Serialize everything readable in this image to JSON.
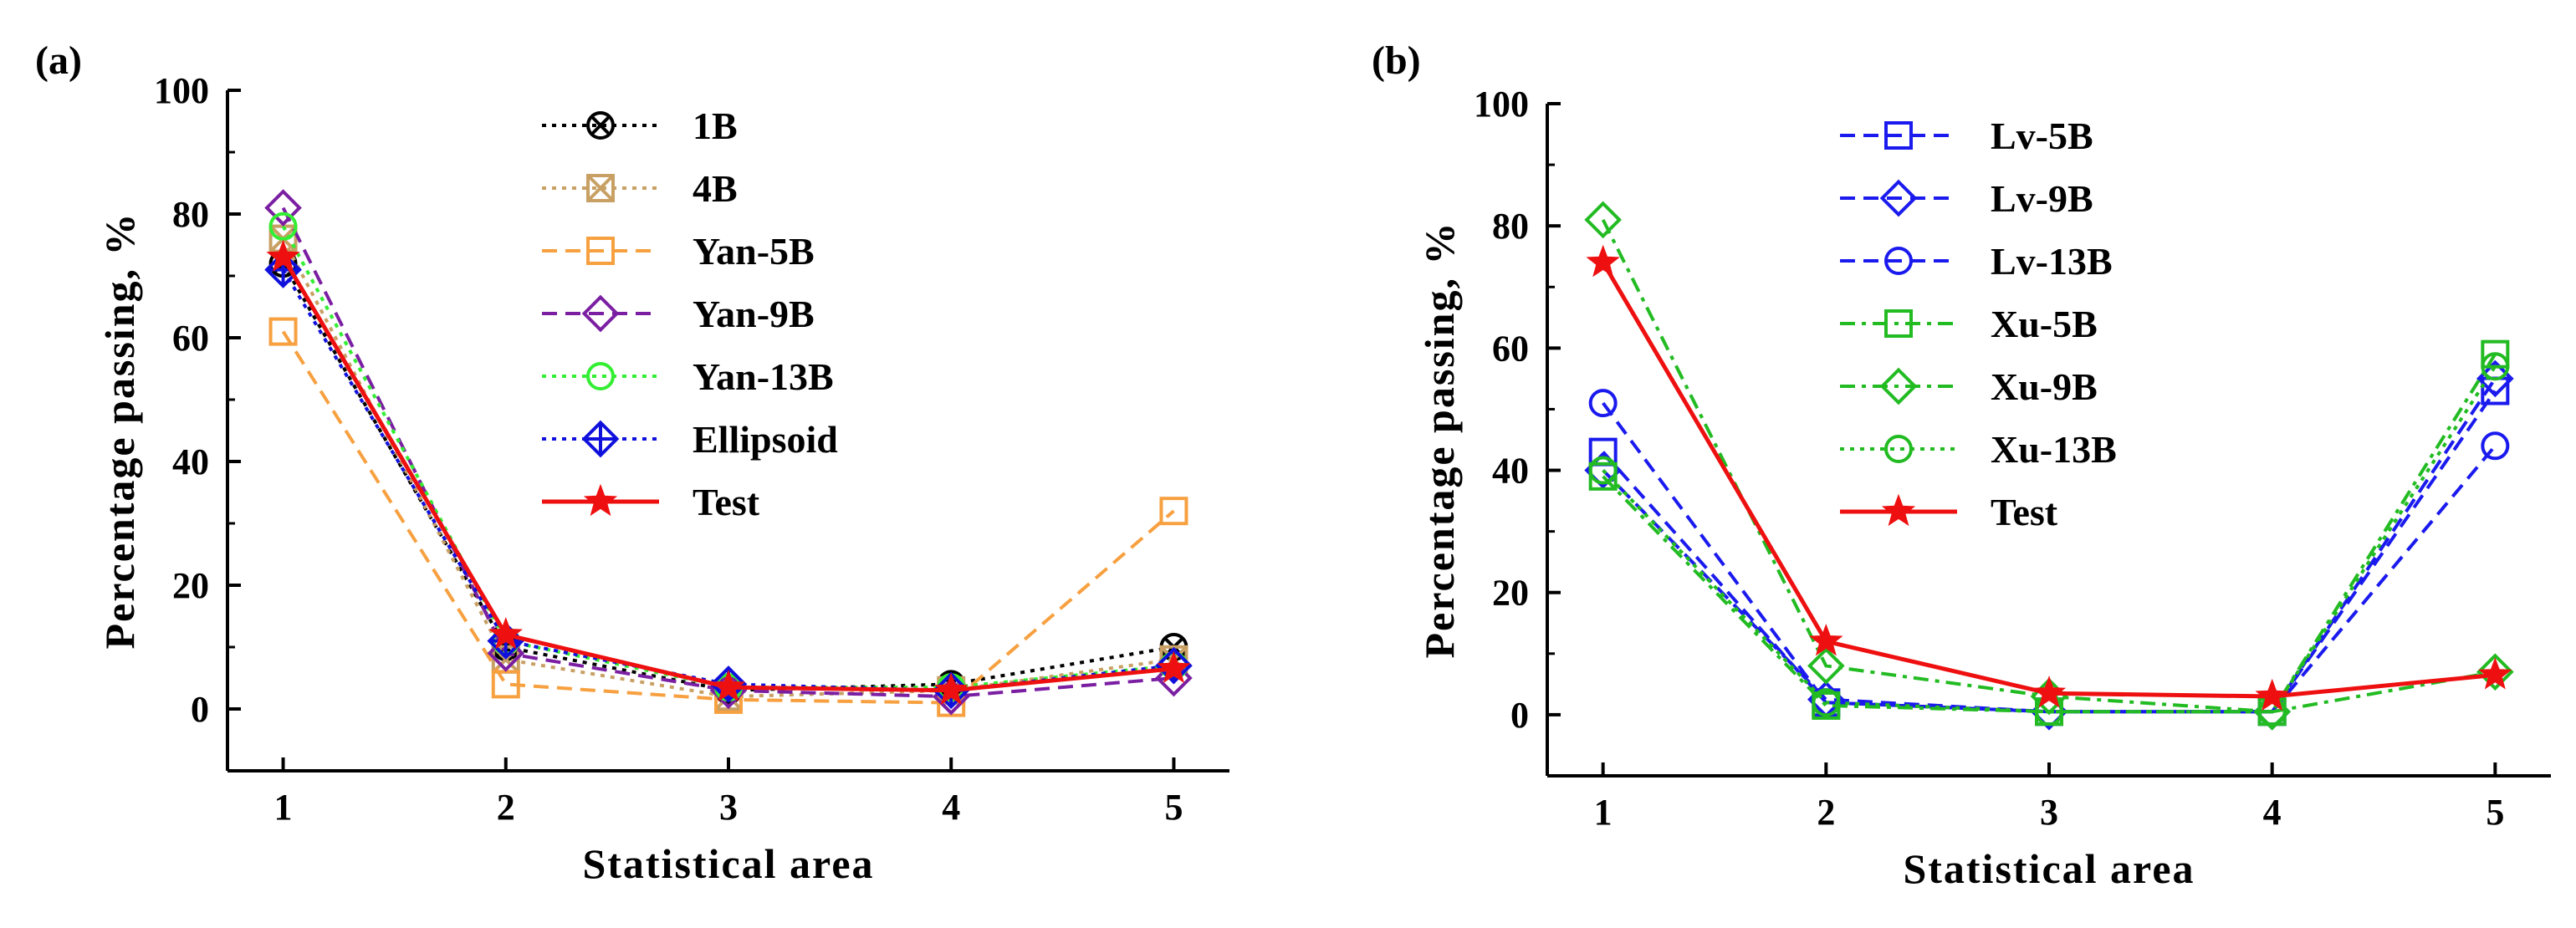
{
  "chart_data": [
    {
      "type": "line",
      "panel_label": "(a)",
      "xlabel": "Statistical area",
      "ylabel": "Percentage passing, %",
      "x": [
        1,
        2,
        3,
        4,
        5
      ],
      "xticks": [
        "1",
        "2",
        "3",
        "4",
        "5"
      ],
      "xlim": [
        0.75,
        5.25
      ],
      "ylim": [
        -10,
        100
      ],
      "yticks": [
        0,
        20,
        40,
        60,
        80,
        100
      ],
      "legend_position": "top-right",
      "series": [
        {
          "name": "1B",
          "values": [
            72,
            10,
            3,
            4,
            10
          ],
          "color": "#000000",
          "dash": "dot",
          "marker": "circle-x"
        },
        {
          "name": "4B",
          "values": [
            76,
            8,
            2,
            3,
            8
          ],
          "color": "#c8a064",
          "dash": "dot",
          "marker": "square-x"
        },
        {
          "name": "Yan-5B",
          "values": [
            61,
            4,
            1.5,
            1,
            32
          ],
          "color": "#f7a040",
          "dash": "dash",
          "marker": "square"
        },
        {
          "name": "Yan-9B",
          "values": [
            81,
            9,
            3,
            2,
            5
          ],
          "color": "#7b1fa2",
          "dash": "dash",
          "marker": "diamond"
        },
        {
          "name": "Yan-13B",
          "values": [
            78,
            11,
            3.5,
            3.5,
            7
          ],
          "color": "#33ee33",
          "dash": "dot",
          "marker": "circle"
        },
        {
          "name": "Ellipsoid",
          "values": [
            71,
            11,
            4,
            3,
            7
          ],
          "color": "#1010dd",
          "dash": "dot",
          "marker": "diamond-plus"
        },
        {
          "name": "Test",
          "values": [
            73,
            12,
            3.5,
            3,
            6.5
          ],
          "color": "#ee1010",
          "dash": "solid",
          "marker": "star"
        }
      ]
    },
    {
      "type": "line",
      "panel_label": "(b)",
      "xlabel": "Statistical area",
      "ylabel": "Percentage passing, %",
      "x": [
        1,
        2,
        3,
        4,
        5
      ],
      "xticks": [
        "1",
        "2",
        "3",
        "4",
        "5"
      ],
      "xlim": [
        0.75,
        5.25
      ],
      "ylim": [
        -10,
        100
      ],
      "yticks": [
        0,
        20,
        40,
        60,
        80,
        100
      ],
      "legend_position": "top-center",
      "series": [
        {
          "name": "Lv-5B",
          "values": [
            43,
            2,
            0.5,
            0.5,
            53
          ],
          "color": "#1a1aee",
          "dash": "dash",
          "marker": "square"
        },
        {
          "name": "Lv-9B",
          "values": [
            40,
            2.5,
            0.5,
            0.5,
            55
          ],
          "color": "#1a1aee",
          "dash": "dash",
          "marker": "diamond"
        },
        {
          "name": "Lv-13B",
          "values": [
            51,
            2,
            0.5,
            0.5,
            44
          ],
          "color": "#1a1aee",
          "dash": "dash",
          "marker": "circle"
        },
        {
          "name": "Xu-5B",
          "values": [
            39,
            1.5,
            0.5,
            0.5,
            59
          ],
          "color": "#22bb22",
          "dash": "dashdot",
          "marker": "square"
        },
        {
          "name": "Xu-9B",
          "values": [
            81,
            8,
            3,
            0.5,
            7
          ],
          "color": "#22bb22",
          "dash": "dashdot",
          "marker": "diamond"
        },
        {
          "name": "Xu-13B",
          "values": [
            40,
            2,
            0.5,
            0.5,
            57
          ],
          "color": "#22bb22",
          "dash": "dot",
          "marker": "circle"
        },
        {
          "name": "Test",
          "values": [
            74,
            12,
            3.5,
            3,
            6.5
          ],
          "color": "#ee1010",
          "dash": "solid",
          "marker": "star"
        }
      ]
    }
  ]
}
